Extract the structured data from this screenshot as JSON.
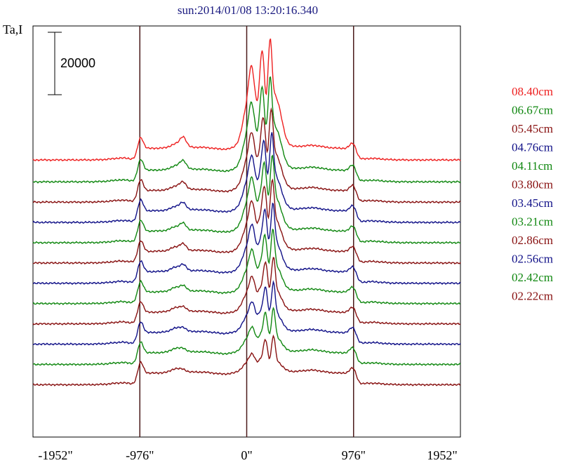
{
  "chart_data": {
    "type": "line",
    "title": "sun:2014/01/08 13:20:16.340",
    "ylabel": "Ta,I",
    "xlabel": "",
    "x_ticks": [
      "-1952\"",
      "-976\"",
      "0\"",
      "976\"",
      "1952\""
    ],
    "x_tick_values": [
      -1952,
      -976,
      0,
      976,
      1952
    ],
    "xlim": [
      -1952,
      1952
    ],
    "vertical_lines": [
      -976,
      0,
      976
    ],
    "scale_bar_label": "20000",
    "scale_bar_value": 20000,
    "grid": false,
    "legend_position": "right",
    "series": [
      {
        "name": "08.40cm",
        "color": "#ee2020",
        "base": 63000,
        "amp": 1.0,
        "peak_shift": 0
      },
      {
        "name": "06.67cm",
        "color": "#118811",
        "base": 56000,
        "amp": 0.82,
        "peak_shift": 0
      },
      {
        "name": "05.45cm",
        "color": "#881111",
        "base": 49500,
        "amp": 0.7,
        "peak_shift": 10
      },
      {
        "name": "04.76cm",
        "color": "#111188",
        "base": 43000,
        "amp": 0.66,
        "peak_shift": 15
      },
      {
        "name": "04.11cm",
        "color": "#118811",
        "base": 36500,
        "amp": 0.64,
        "peak_shift": 20
      },
      {
        "name": "03.80cm",
        "color": "#881111",
        "base": 30000,
        "amp": 0.6,
        "peak_shift": 20
      },
      {
        "name": "03.45cm",
        "color": "#111188",
        "base": 23500,
        "amp": 0.56,
        "peak_shift": 25
      },
      {
        "name": "03.21cm",
        "color": "#118811",
        "base": 17000,
        "amp": 0.5,
        "peak_shift": 25
      },
      {
        "name": "02.86cm",
        "color": "#881111",
        "base": 10500,
        "amp": 0.42,
        "peak_shift": 30
      },
      {
        "name": "02.56cm",
        "color": "#111188",
        "base": 4000,
        "amp": 0.36,
        "peak_shift": 30
      },
      {
        "name": "02.42cm",
        "color": "#118811",
        "base": -2500,
        "amp": 0.3,
        "peak_shift": 30
      },
      {
        "name": "02.22cm",
        "color": "#881111",
        "base": -9000,
        "amp": 0.22,
        "peak_shift": 30
      }
    ]
  }
}
